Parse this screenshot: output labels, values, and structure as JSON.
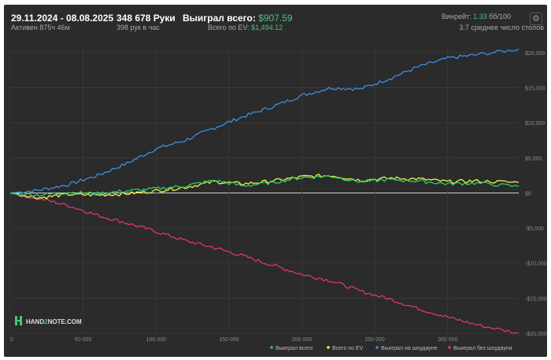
{
  "header": {
    "date_range": "29.11.2024 - 08.08.2025",
    "active_time": "Активен 875ч 46м",
    "hands_count": "348 678 Руки",
    "hands_per_hour": "398 рук в час",
    "won_total_label": "Выиграл всего:",
    "won_total_value": "$907.59",
    "ev_total_label": "Всего по EV:",
    "ev_total_value": "$1,494.12",
    "winrate_label": "Винрейт:",
    "winrate_value": "1.33",
    "winrate_unit": "бб/100",
    "avg_tables": "3.7 среднее число столов"
  },
  "logo": {
    "text_left": "HAND",
    "text_mid": "2",
    "text_right": "NOTE.COM"
  },
  "colors": {
    "won_total": "#2ecc71",
    "ev_total": "#f4f142",
    "showdown": "#3d8fe0",
    "non_showdown": "#e0356b",
    "accent_green": "#4cc37a"
  },
  "chart_data": {
    "type": "line",
    "x_ticks": [
      "0",
      "50 000",
      "100 000",
      "150 000",
      "200 000",
      "250 000",
      "300 000"
    ],
    "x_tick_values": [
      0,
      50000,
      100000,
      150000,
      200000,
      250000,
      300000
    ],
    "y_ticks": [
      "$20,000",
      "$15,000",
      "$10,000",
      "$5,000",
      "$0",
      "-$5,000",
      "-$10,000",
      "-$15,000",
      "-$20,000"
    ],
    "y_tick_values": [
      20000,
      15000,
      10000,
      5000,
      0,
      -5000,
      -10000,
      -15000,
      -20000
    ],
    "xlim": [
      0,
      348678
    ],
    "ylim": [
      -20000,
      21000
    ],
    "legend_position": "bottom-right",
    "series": [
      {
        "name": "Выиграл всего",
        "color": "#2ecc71",
        "x": [
          0,
          20000,
          40000,
          60000,
          80000,
          100000,
          120000,
          140000,
          160000,
          180000,
          200000,
          220000,
          240000,
          260000,
          280000,
          300000,
          320000,
          348678
        ],
        "y": [
          0,
          -300,
          100,
          -100,
          300,
          600,
          1000,
          1800,
          1000,
          1500,
          2200,
          2400,
          1600,
          1900,
          1700,
          1300,
          1400,
          907.59
        ]
      },
      {
        "name": "Всего по EV",
        "color": "#f4f142",
        "x": [
          0,
          20000,
          40000,
          60000,
          80000,
          100000,
          120000,
          140000,
          160000,
          180000,
          200000,
          220000,
          240000,
          260000,
          280000,
          300000,
          320000,
          348678
        ],
        "y": [
          0,
          -700,
          -200,
          -300,
          -100,
          300,
          800,
          1600,
          1300,
          1700,
          2300,
          2500,
          1800,
          2100,
          2000,
          1600,
          1700,
          1494.12
        ]
      },
      {
        "name": "Выиграл на шоудауне",
        "color": "#3d8fe0",
        "x": [
          0,
          20000,
          40000,
          60000,
          80000,
          100000,
          120000,
          140000,
          160000,
          180000,
          200000,
          220000,
          240000,
          260000,
          280000,
          300000,
          320000,
          348678
        ],
        "y": [
          0,
          400,
          1200,
          2500,
          4200,
          6300,
          7500,
          9300,
          10900,
          12300,
          13900,
          15000,
          14800,
          16300,
          18000,
          19200,
          19700,
          20500
        ]
      },
      {
        "name": "Выиграл без шоудауна",
        "color": "#e0356b",
        "x": [
          0,
          20000,
          40000,
          60000,
          80000,
          100000,
          120000,
          140000,
          160000,
          180000,
          200000,
          220000,
          240000,
          260000,
          280000,
          300000,
          320000,
          348678
        ],
        "y": [
          0,
          -800,
          -1800,
          -3200,
          -4300,
          -5500,
          -6800,
          -7800,
          -9000,
          -10300,
          -11600,
          -12500,
          -14000,
          -15100,
          -16500,
          -17700,
          -18800,
          -20000
        ]
      }
    ]
  }
}
